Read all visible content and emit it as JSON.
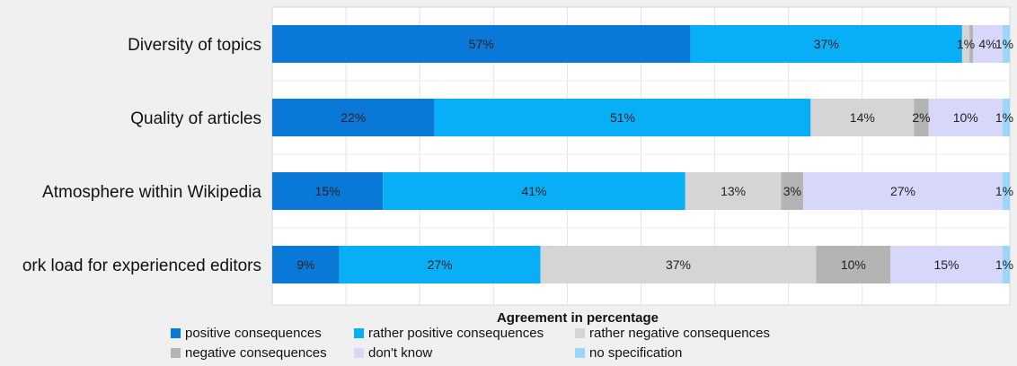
{
  "chart_data": {
    "type": "bar",
    "orientation": "horizontal",
    "stacked": true,
    "categories": [
      "Diversity of topics",
      "Quality of articles",
      "Atmosphere within Wikipedia",
      "ork load for experienced editors"
    ],
    "series": [
      {
        "name": "positive consequences",
        "color": "#0a78d6",
        "values": [
          57,
          22,
          15,
          9
        ]
      },
      {
        "name": "rather positive consequences",
        "color": "#08aef6",
        "values": [
          37,
          51,
          41,
          27
        ]
      },
      {
        "name": "rather negative consequences",
        "color": "#d5d5d5",
        "values": [
          1,
          14,
          13,
          37
        ]
      },
      {
        "name": "negative consequences",
        "color": "#b4b4b4",
        "values": [
          0.5,
          2,
          3,
          10
        ]
      },
      {
        "name": "don't know",
        "color": "#d7d7fa",
        "values": [
          4,
          10,
          27,
          15
        ]
      },
      {
        "name": "no specification",
        "color": "#9cd6fa",
        "values": [
          1,
          1,
          1,
          1
        ]
      }
    ],
    "labels": [
      [
        "57%",
        "37%",
        "1%",
        "",
        "4%",
        "1%"
      ],
      [
        "22%",
        "51%",
        "14%",
        "2%",
        "10%",
        "1%"
      ],
      [
        "15%",
        "41%",
        "13%",
        "3%",
        "27%",
        "1%"
      ],
      [
        "9%",
        "27%",
        "37%",
        "10%",
        "15%",
        "1%"
      ]
    ],
    "xlabel": "Agreement in percentage",
    "xlim": [
      0,
      100
    ],
    "grid": true,
    "legend_position": "bottom"
  }
}
